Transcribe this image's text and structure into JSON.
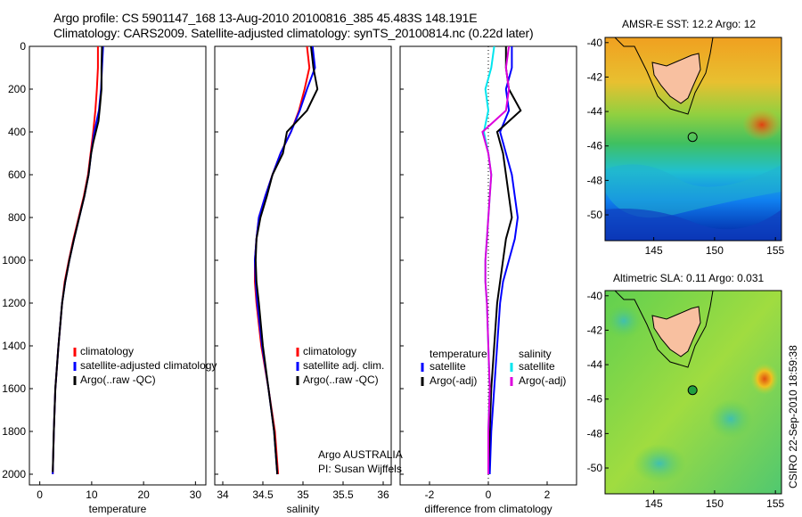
{
  "header": {
    "title_line1": "Argo profile: CS 5901147_168 13-Aug-2010 20100816_385 45.483S 148.191E",
    "title_line2": "Climatology: CARS2009. Satellite-adjusted climatology: synTS_20100814.nc (0.22d later)"
  },
  "credit": "CSIRO 22-Sep-2010 18:59:38",
  "colors": {
    "climatology": "#ff0000",
    "satellite": "#0000ff",
    "argo": "#000000",
    "sal_sat": "#00e5ee",
    "sal_argo": "#dd00dd"
  },
  "chart_data": [
    {
      "type": "line",
      "title": "",
      "xlabel": "temperature",
      "ylabel": "",
      "xlim": [
        -2,
        32
      ],
      "ylim": [
        2050,
        0
      ],
      "xticks": [
        0,
        10,
        20,
        30
      ],
      "yticks": [
        0,
        200,
        400,
        600,
        800,
        1000,
        1200,
        1400,
        1600,
        1800,
        2000
      ],
      "legend": [
        "climatology",
        "satellite-adjusted climatology",
        "Argo(..raw -QC)"
      ],
      "series": [
        {
          "name": "climatology",
          "color": "#ff0000",
          "x": [
            11.2,
            11.2,
            11.0,
            10.7,
            10.3,
            9.8,
            9.3,
            8.5,
            7.5,
            6.5,
            5.6,
            4.8,
            4.3,
            3.6,
            3.0,
            2.7,
            2.5
          ],
          "y": [
            0,
            100,
            200,
            300,
            400,
            500,
            600,
            700,
            800,
            900,
            1000,
            1100,
            1200,
            1400,
            1600,
            1800,
            2000
          ]
        },
        {
          "name": "satellite-adjusted climatology",
          "color": "#0000ff",
          "x": [
            12.2,
            12.0,
            11.8,
            11.4,
            10.5,
            9.9,
            9.4,
            8.6,
            7.6,
            6.6,
            5.7,
            4.9,
            4.3,
            3.6,
            3.0,
            2.7,
            2.5
          ],
          "y": [
            0,
            100,
            200,
            300,
            400,
            500,
            600,
            700,
            800,
            900,
            1000,
            1100,
            1200,
            1400,
            1600,
            1800,
            2000
          ]
        },
        {
          "name": "Argo(..raw -QC)",
          "color": "#000000",
          "x": [
            12.0,
            11.9,
            11.9,
            11.6,
            11.3,
            10.3,
            9.9,
            9.4,
            8.6,
            7.6,
            6.6,
            5.7,
            4.9,
            4.3,
            3.6,
            3.0,
            2.7,
            2.5
          ],
          "y": [
            0,
            100,
            200,
            280,
            350,
            450,
            500,
            600,
            700,
            800,
            900,
            1000,
            1100,
            1200,
            1400,
            1600,
            1800,
            1990
          ]
        }
      ]
    },
    {
      "type": "line",
      "title": "",
      "xlabel": "salinity",
      "ylabel": "",
      "xlim": [
        33.9,
        36.1
      ],
      "ylim": [
        2050,
        0
      ],
      "xticks": [
        34,
        34.5,
        35,
        35.5,
        36
      ],
      "legend": [
        "climatology",
        "satellite adj. clim.",
        "Argo(..raw -QC)"
      ],
      "annotation": [
        "Argo AUSTRALIA",
        "PI: Susan Wijffels"
      ],
      "series": [
        {
          "name": "climatology",
          "color": "#ff0000",
          "x": [
            35.05,
            35.08,
            35.02,
            34.95,
            34.85,
            34.72,
            34.62,
            34.53,
            34.45,
            34.42,
            34.4,
            34.4,
            34.42,
            34.48,
            34.57,
            34.65,
            34.69
          ],
          "y": [
            0,
            100,
            200,
            300,
            400,
            500,
            600,
            700,
            800,
            900,
            1000,
            1100,
            1200,
            1400,
            1600,
            1800,
            2000
          ]
        },
        {
          "name": "satellite adj. clim.",
          "color": "#0000ff",
          "x": [
            35.12,
            35.15,
            35.05,
            34.96,
            34.85,
            34.72,
            34.62,
            34.53,
            34.45,
            34.42,
            34.4,
            34.41,
            34.43,
            34.49,
            34.57,
            34.64,
            34.68
          ],
          "y": [
            0,
            100,
            200,
            300,
            400,
            500,
            600,
            700,
            800,
            900,
            1000,
            1100,
            1200,
            1400,
            1600,
            1800,
            2000
          ]
        },
        {
          "name": "Argo(..raw -QC)",
          "color": "#000000",
          "x": [
            35.1,
            35.13,
            35.18,
            35.05,
            34.8,
            34.75,
            34.62,
            34.55,
            34.47,
            34.42,
            34.41,
            34.42,
            34.45,
            34.5,
            34.57,
            34.64,
            34.68
          ],
          "y": [
            0,
            100,
            200,
            300,
            400,
            500,
            600,
            700,
            800,
            900,
            1000,
            1100,
            1200,
            1400,
            1600,
            1800,
            2000
          ]
        }
      ]
    },
    {
      "type": "line",
      "title": "",
      "xlabel": "difference from climatology",
      "ylabel": "",
      "xlim": [
        -3,
        3
      ],
      "ylim": [
        2050,
        0
      ],
      "xticks": [
        -2,
        0,
        2
      ],
      "legend_groups": [
        {
          "heading": "temperature",
          "entries": [
            "satellite",
            "Argo(-adj)"
          ]
        },
        {
          "heading": "salinity",
          "entries": [
            "satellite",
            "Argo(-adj)"
          ]
        }
      ],
      "series": [
        {
          "name": "temperature satellite",
          "color": "#0000ff",
          "x": [
            0.8,
            0.8,
            0.6,
            0.7,
            0.4,
            0.6,
            0.8,
            0.9,
            1.0,
            0.9,
            0.7,
            0.5,
            0.4,
            0.3,
            0.2,
            0.1,
            0.05
          ],
          "y": [
            0,
            100,
            200,
            300,
            400,
            500,
            600,
            700,
            800,
            900,
            1000,
            1100,
            1200,
            1400,
            1600,
            1800,
            2000
          ]
        },
        {
          "name": "temperature Argo(-adj)",
          "color": "#000000",
          "x": [
            0.6,
            0.6,
            0.7,
            1.1,
            0.3,
            0.5,
            0.6,
            0.7,
            0.8,
            0.6,
            0.5,
            0.4,
            0.3,
            0.2,
            0.1,
            0.05,
            0.0
          ],
          "y": [
            0,
            100,
            200,
            300,
            400,
            500,
            600,
            700,
            800,
            900,
            1000,
            1100,
            1200,
            1400,
            1600,
            1800,
            2000
          ]
        },
        {
          "name": "salinity satellite",
          "color": "#00e5ee",
          "x": [
            0.2,
            0.1,
            -0.1,
            0.0,
            -0.15,
            0.0,
            0.1,
            0.05,
            0.0,
            -0.05,
            -0.1,
            -0.1,
            -0.05,
            0.0,
            0.05,
            0.0,
            0.0
          ],
          "y": [
            0,
            100,
            200,
            300,
            400,
            500,
            600,
            700,
            800,
            900,
            1000,
            1100,
            1200,
            1400,
            1600,
            1800,
            2000
          ]
        },
        {
          "name": "salinity Argo(-adj)",
          "color": "#dd00dd",
          "x": [
            0.7,
            0.6,
            0.7,
            0.6,
            -0.2,
            0.0,
            0.1,
            0.05,
            0.0,
            -0.05,
            -0.1,
            -0.1,
            -0.05,
            0.0,
            0.05,
            0.0,
            0.0
          ],
          "y": [
            0,
            100,
            200,
            300,
            400,
            500,
            600,
            700,
            800,
            900,
            1000,
            1100,
            1200,
            1400,
            1600,
            1800,
            2000
          ]
        }
      ]
    },
    {
      "type": "heatmap",
      "title": "AMSR-E SST: 12.2 Argo: 12",
      "xlim": [
        141,
        155.5
      ],
      "ylim": [
        -51.5,
        -39.7
      ],
      "xticks": [
        145,
        150,
        155
      ],
      "yticks": [
        -40,
        -42,
        -44,
        -46,
        -48,
        -50
      ],
      "marker": {
        "lon": 148.191,
        "lat": -45.483
      }
    },
    {
      "type": "heatmap",
      "title": "Altimetric SLA: 0.11 Argo: 0.031",
      "xlim": [
        141,
        155.5
      ],
      "ylim": [
        -51.5,
        -39.7
      ],
      "xticks": [
        145,
        150,
        155
      ],
      "yticks": [
        -40,
        -42,
        -44,
        -46,
        -48,
        -50
      ],
      "marker": {
        "lon": 148.191,
        "lat": -45.483
      }
    }
  ]
}
